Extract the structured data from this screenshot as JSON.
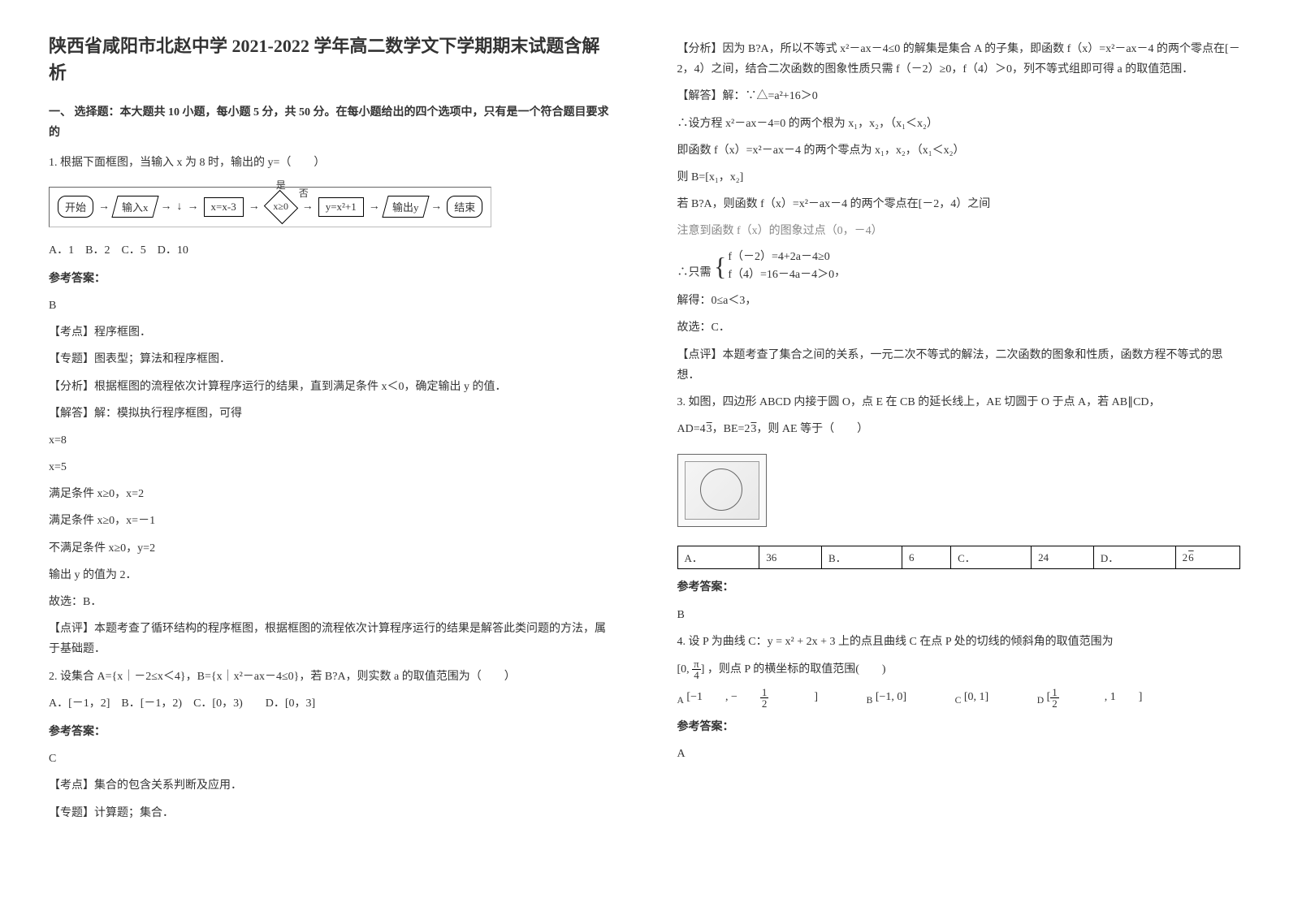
{
  "title": "陕西省咸阳市北赵中学 2021-2022 学年高二数学文下学期期末试题含解析",
  "section1_heading": "一、 选择题：本大题共 10 小题，每小题 5 分，共 50 分。在每小题给出的四个选项中，只有是一个符合题目要求的",
  "q1": {
    "stem": "1. 根据下面框图，当输入 x 为 8 时，输出的 y=（　　）",
    "flowchart": {
      "start": "开始",
      "input": "输入x",
      "assign": "x=x-3",
      "cond": "x≥0",
      "yes_label": "是",
      "no_label": "否",
      "calc": "y=x²+1",
      "output": "输出y",
      "end": "结束"
    },
    "options": "A．1　B．2　C．5　D．10",
    "answer_label": "参考答案：",
    "answer": "B",
    "analysis": [
      "【考点】程序框图．",
      "【专题】图表型；算法和程序框图．",
      "【分析】根据框图的流程依次计算程序运行的结果，直到满足条件 x＜0，确定输出 y 的值．",
      "【解答】解：模拟执行程序框图，可得",
      "x=8",
      "x=5",
      "满足条件 x≥0，x=2",
      "满足条件 x≥0，x=－1",
      "不满足条件 x≥0，y=2",
      "输出 y 的值为 2．",
      "故选：B．",
      "【点评】本题考查了循环结构的程序框图，根据框图的流程依次计算程序运行的结果是解答此类问题的方法，属于基础题．"
    ]
  },
  "q2": {
    "stem": "2. 设集合 A={x｜－2≤x＜4}，B={x｜x²－ax－4≤0}，若 B?A，则实数 a 的取值范围为（　　）",
    "options": "A．[－1，2]　B．[－1，2)　C．[0，3)　　D．[0，3]",
    "answer_label": "参考答案：",
    "answer": "C",
    "analysis_left": [
      "【考点】集合的包含关系判断及应用．",
      "【专题】计算题；集合．"
    ],
    "analysis_right": [
      "【分析】因为 B?A，所以不等式 x²－ax－4≤0 的解集是集合 A 的子集，即函数 f（x）=x²－ax－4 的两个零点在[－2，4）之间，结合二次函数的图象性质只需 f（－2）≥0，f（4）＞0，列不等式组即可得 a 的取值范围．",
      "【解答】解：∵△=a²+16＞0",
      "∴设方程 x²－ax－4=0 的两个根为 x₁，x₂，（x₁＜x₂）",
      "即函数 f（x）=x²－ax－4 的两个零点为 x₁，x₂，（x₁＜x₂）",
      "则 B=[x₁，x₂]",
      "若 B?A，则函数 f（x）=x²－ax－4 的两个零点在[－2，4）之间",
      "注意到函数 f（x）的图象过点（0，－4）"
    ],
    "brace_prefix": "∴只需",
    "brace_lines": [
      "f（－2）=4+2a－4≥0",
      "f（4）=16－4a－4＞0"
    ],
    "after_brace": [
      "解得：0≤a＜3，",
      "故选：C．",
      "【点评】本题考查了集合之间的关系，一元二次不等式的解法，二次函数的图象和性质，函数方程不等式的思想．"
    ]
  },
  "q3": {
    "stem_a": "3. 如图，四边形 ABCD 内接于圆 O，点 E 在 CB 的延长线上，AE 切圆于 O 于点 A，若 AB∥CD，",
    "stem_b": "AD=4√3，BE=2√3，则 AE 等于（　　）",
    "table": [
      [
        "A．",
        "36",
        "B．",
        "6",
        "C．",
        "24",
        "D．",
        "2√6"
      ]
    ],
    "answer_label": "参考答案：",
    "answer": "B"
  },
  "q4": {
    "stem_a": "4. 设 P 为曲线 C：y = x² + 2x + 3 上的点且曲线 C 在点 P 处的切线的倾斜角的取值范围为",
    "stem_b_before": "",
    "interval_low": "0",
    "interval_high_num": "π",
    "interval_high_den": "4",
    "stem_b_after": "，则点 P 的横坐标的取值范围(　　)",
    "opt_A_label": "A",
    "opt_A_low": "−1",
    "opt_A_high_neg": "−",
    "opt_A_high_num": "1",
    "opt_A_high_den": "2",
    "opt_B_label": "B",
    "opt_B": "[−1, 0]",
    "opt_C_label": "C",
    "opt_C": "[0, 1]",
    "opt_D_label": "D",
    "opt_D_low_num": "1",
    "opt_D_low_den": "2",
    "opt_D_high": "1",
    "answer_label": "参考答案：",
    "answer": "A"
  },
  "labels": {
    "answer": "参考答案："
  }
}
